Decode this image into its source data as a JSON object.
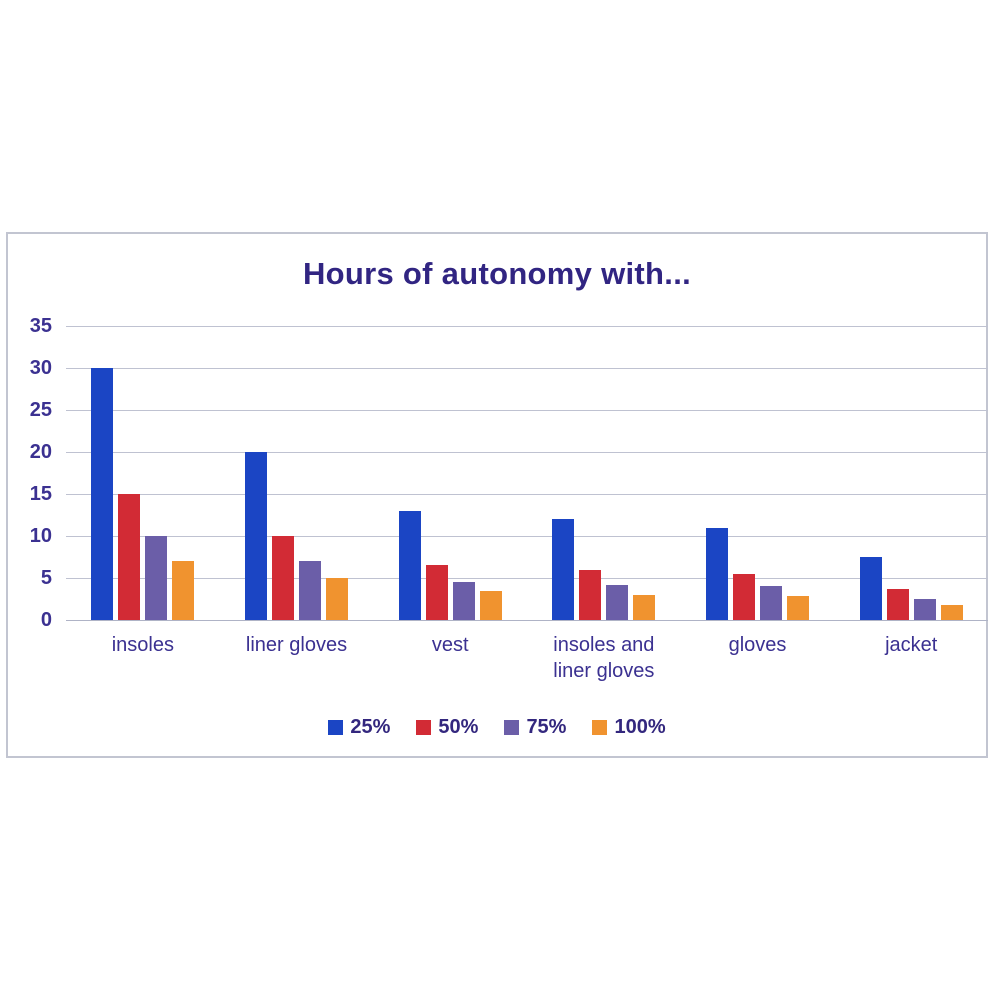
{
  "chart": {
    "title": "Hours of autonomy with..."
  },
  "chart_data": {
    "type": "bar",
    "title": "Hours of autonomy with...",
    "categories": [
      "insoles",
      "liner gloves",
      "vest",
      "insoles and liner gloves",
      "gloves",
      "jacket"
    ],
    "series": [
      {
        "name": "25%",
        "color": "#1b45c4",
        "values": [
          30,
          20,
          13,
          12,
          11,
          7.5
        ]
      },
      {
        "name": "50%",
        "color": "#d22b35",
        "values": [
          15,
          10,
          6.5,
          6,
          5.5,
          3.7
        ]
      },
      {
        "name": "75%",
        "color": "#6b5ea8",
        "values": [
          10,
          7,
          4.5,
          4.2,
          4.1,
          2.5
        ]
      },
      {
        "name": "100%",
        "color": "#f0932f",
        "values": [
          7,
          5,
          3.5,
          3,
          2.9,
          1.8
        ]
      }
    ],
    "xlabel": "",
    "ylabel": "",
    "ylim": [
      0,
      35
    ],
    "ytick_step": 5,
    "ytick_labels": [
      "0",
      "5",
      "10",
      "15",
      "20",
      "25",
      "30",
      "35"
    ],
    "grid": true,
    "legend_position": "bottom",
    "colors": {
      "title_text": "#312582",
      "axis_text": "#3b3191",
      "legend_text": "#33277e",
      "gridline": "#bfc2d1",
      "frame_border": "#c2c5d1",
      "background": "#ffffff"
    }
  }
}
